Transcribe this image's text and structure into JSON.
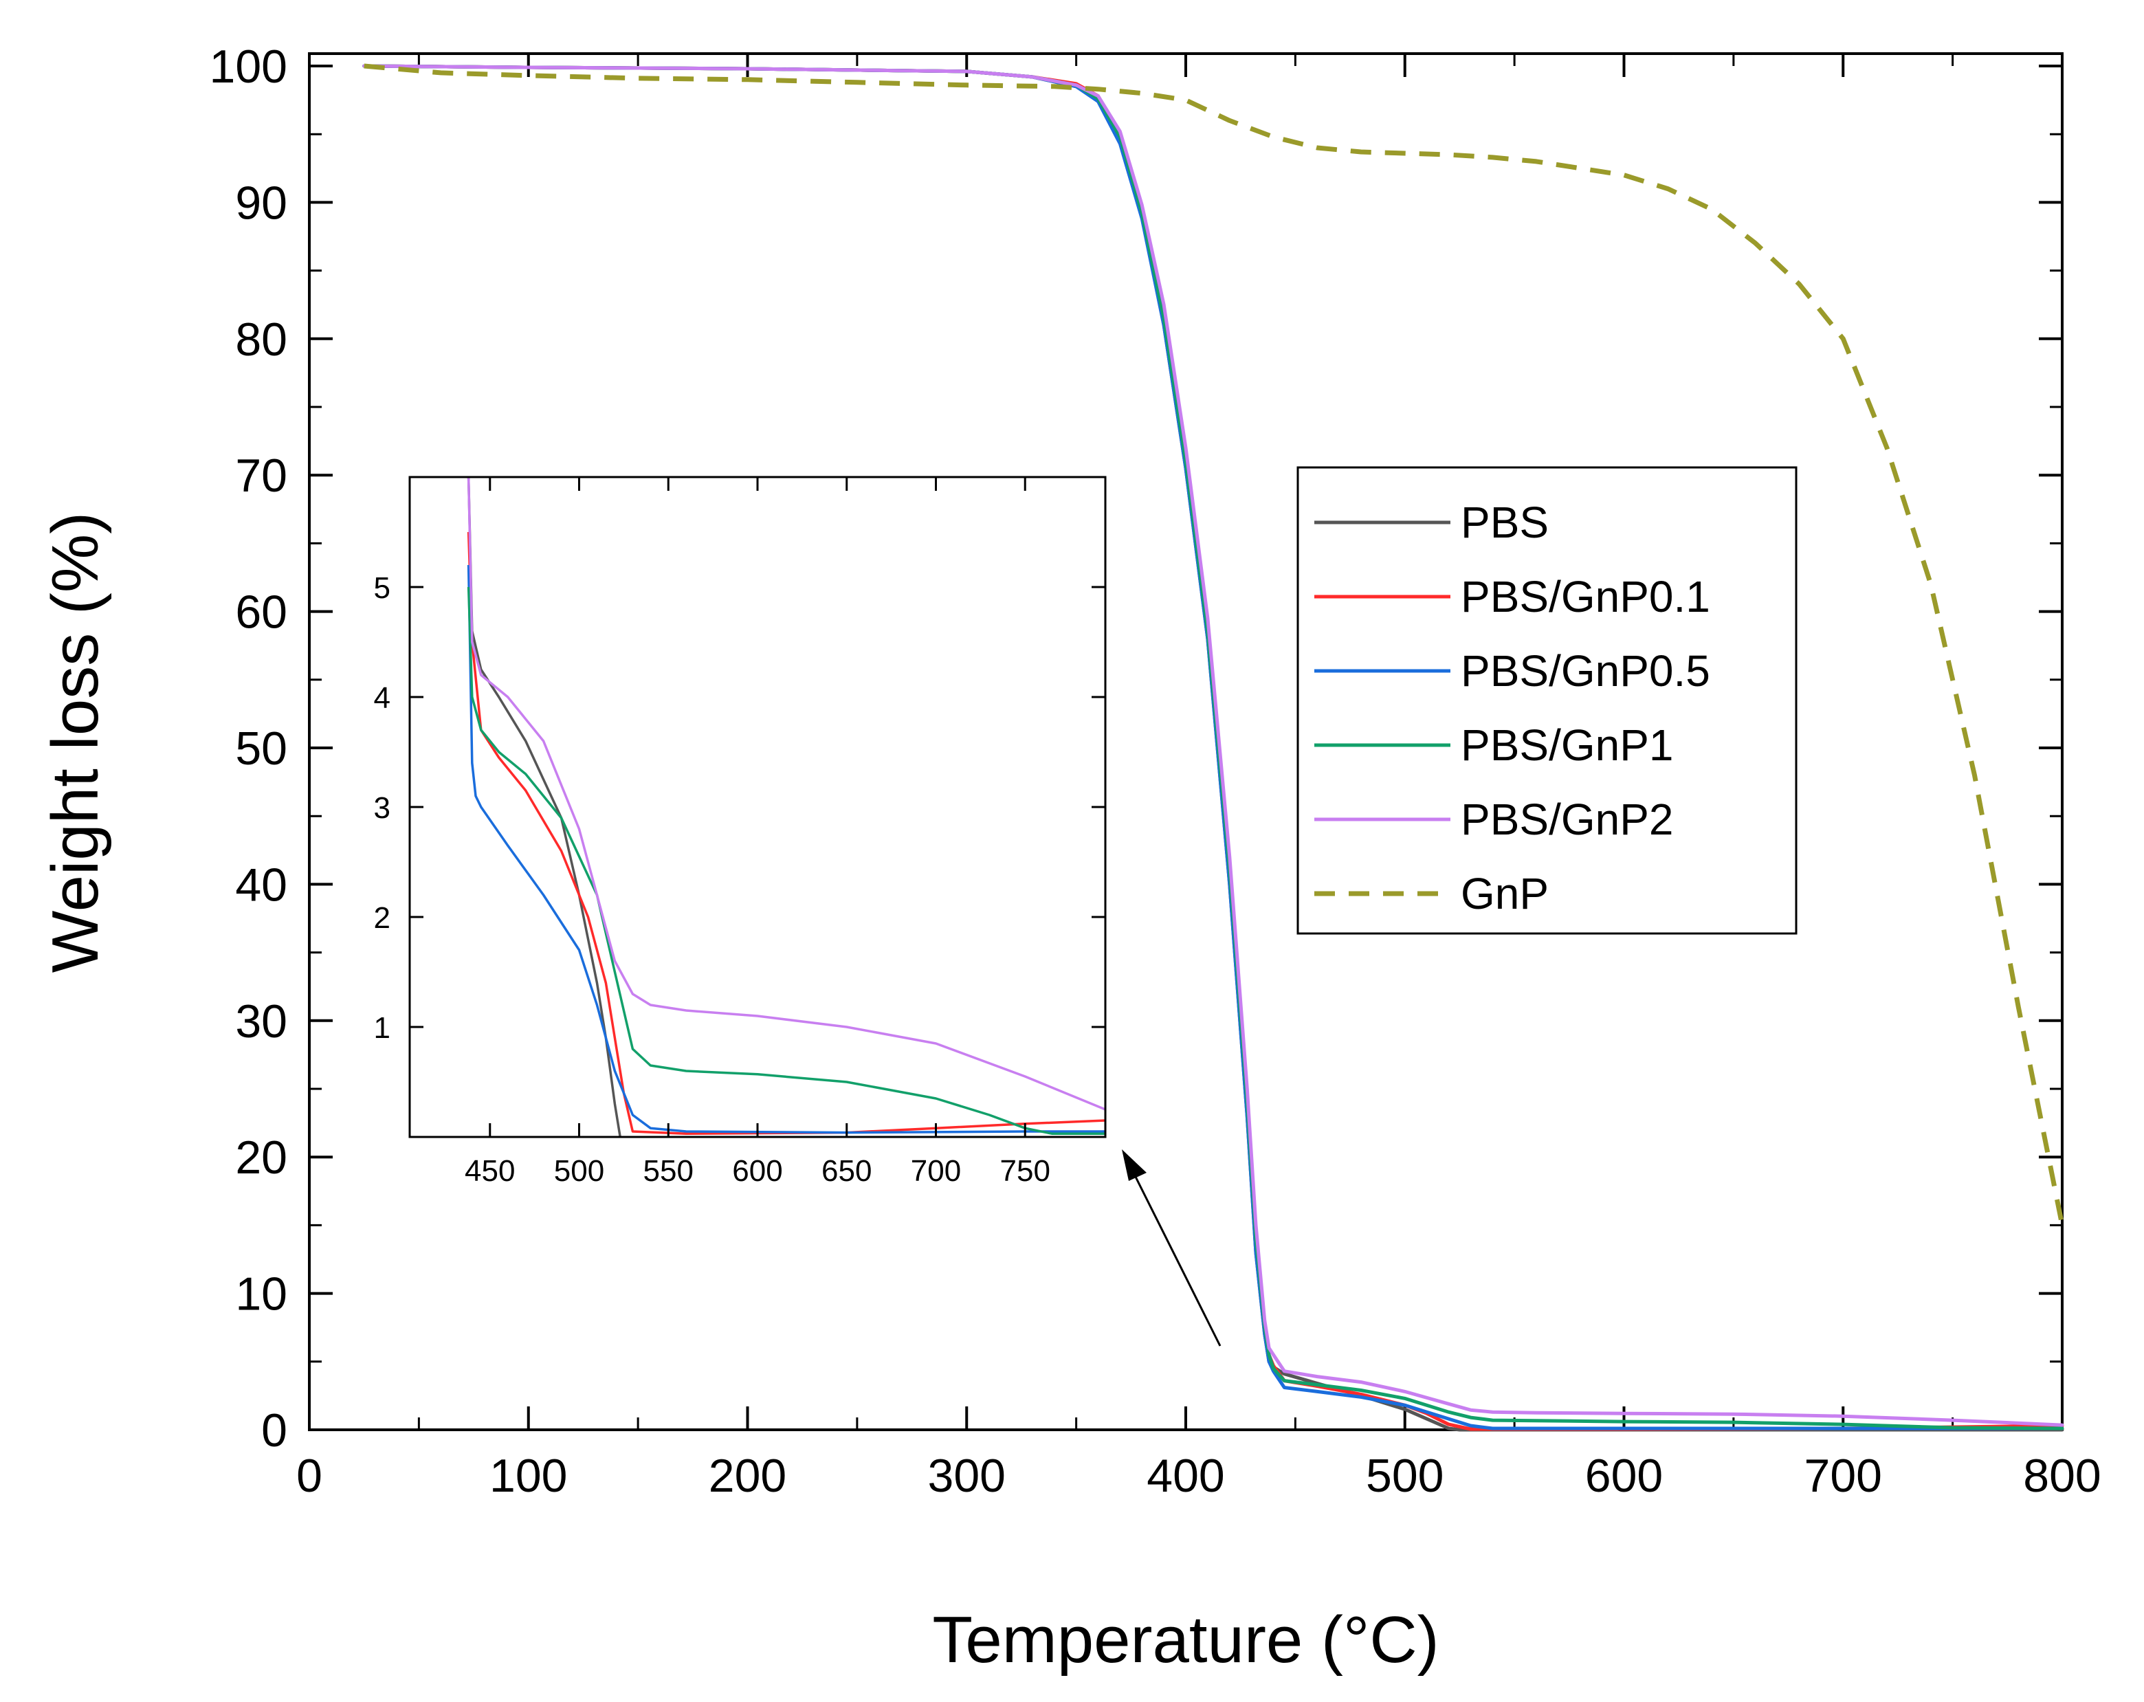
{
  "chart_data": [
    {
      "type": "line",
      "xlabel": "Temperature (°C)",
      "ylabel": "Weight loss (%)",
      "xlim": [
        0,
        800
      ],
      "ylim": [
        0,
        100
      ],
      "xticks": [
        0,
        100,
        200,
        300,
        400,
        500,
        600,
        700,
        800
      ],
      "yticks": [
        0,
        10,
        20,
        30,
        40,
        50,
        60,
        70,
        80,
        90,
        100
      ],
      "grid": false,
      "legend_position": "right-center",
      "series": [
        {
          "name": "PBS",
          "color": "#555555",
          "dash": "solid",
          "x": [
            25,
            100,
            200,
            300,
            330,
            350,
            360,
            370,
            380,
            390,
            400,
            410,
            420,
            428,
            432,
            436,
            438,
            440,
            445,
            460,
            480,
            500,
            510,
            520,
            525,
            530,
            600,
            700,
            800
          ],
          "y": [
            100,
            99.9,
            99.8,
            99.6,
            99.2,
            98.5,
            97.5,
            94.5,
            89,
            81,
            70.5,
            58,
            40,
            23,
            13,
            7,
            5,
            4.6,
            4.1,
            3.4,
            2.5,
            1.5,
            0.8,
            0.1,
            0,
            0,
            0,
            0,
            0
          ]
        },
        {
          "name": "PBS/GnP0.1",
          "color": "#ff2a2a",
          "dash": "solid",
          "x": [
            25,
            100,
            200,
            300,
            330,
            350,
            360,
            370,
            380,
            390,
            400,
            410,
            420,
            428,
            432,
            436,
            438,
            440,
            445,
            460,
            480,
            500,
            510,
            520,
            530,
            600,
            700,
            800
          ],
          "y": [
            100,
            99.9,
            99.8,
            99.6,
            99.2,
            98.7,
            97.8,
            95,
            89.5,
            82,
            71,
            58.5,
            41,
            24,
            14,
            7.5,
            5.5,
            4.7,
            3.6,
            3.2,
            2.6,
            1.8,
            1.2,
            0.4,
            0.05,
            0.05,
            0.1,
            0.3
          ]
        },
        {
          "name": "PBS/GnP0.5",
          "color": "#1a6ddc",
          "dash": "solid",
          "x": [
            25,
            100,
            200,
            300,
            330,
            350,
            360,
            370,
            380,
            390,
            400,
            410,
            420,
            428,
            432,
            436,
            438,
            440,
            445,
            460,
            480,
            500,
            520,
            530,
            540,
            600,
            700,
            800
          ],
          "y": [
            100,
            99.9,
            99.8,
            99.6,
            99.2,
            98.5,
            97.4,
            94.3,
            88.8,
            81,
            70.5,
            58,
            40,
            23,
            13,
            7,
            5,
            4.3,
            3.1,
            2.8,
            2.4,
            1.8,
            0.8,
            0.3,
            0.1,
            0.1,
            0.1,
            0.1
          ]
        },
        {
          "name": "PBS/GnP1",
          "color": "#12a06a",
          "dash": "solid",
          "x": [
            25,
            100,
            200,
            300,
            330,
            350,
            360,
            370,
            380,
            390,
            400,
            410,
            420,
            428,
            432,
            436,
            438,
            440,
            445,
            460,
            480,
            500,
            520,
            530,
            540,
            600,
            650,
            700,
            750,
            800
          ],
          "y": [
            100,
            99.9,
            99.8,
            99.6,
            99.2,
            98.6,
            97.6,
            94.8,
            89.2,
            81.5,
            71,
            58.5,
            41,
            24,
            14,
            7.5,
            5.5,
            4.5,
            3.6,
            3.3,
            2.9,
            2.3,
            1.3,
            0.9,
            0.7,
            0.6,
            0.55,
            0.4,
            0.15,
            0.1
          ]
        },
        {
          "name": "PBS/GnP2",
          "color": "#c87ff0",
          "dash": "solid",
          "x": [
            25,
            100,
            200,
            300,
            330,
            350,
            360,
            370,
            380,
            390,
            400,
            410,
            420,
            428,
            432,
            436,
            438,
            440,
            445,
            460,
            480,
            500,
            520,
            530,
            540,
            560,
            600,
            650,
            700,
            750,
            800
          ],
          "y": [
            100,
            99.9,
            99.8,
            99.6,
            99.2,
            98.6,
            97.8,
            95.2,
            89.8,
            82.5,
            72,
            59.5,
            42,
            25,
            15,
            8,
            6,
            5.5,
            4.3,
            3.9,
            3.5,
            2.8,
            1.9,
            1.45,
            1.3,
            1.25,
            1.2,
            1.15,
            1.0,
            0.7,
            0.35
          ]
        },
        {
          "name": "GnP",
          "color": "#9a9a2a",
          "dash": "dashed",
          "x": [
            25,
            60,
            100,
            150,
            200,
            250,
            300,
            340,
            360,
            380,
            400,
            420,
            440,
            460,
            480,
            500,
            520,
            540,
            560,
            580,
            600,
            620,
            640,
            660,
            680,
            700,
            720,
            740,
            760,
            780,
            800
          ],
          "y": [
            100,
            99.5,
            99.3,
            99.1,
            99.0,
            98.8,
            98.6,
            98.5,
            98.3,
            98.0,
            97.5,
            96.0,
            94.8,
            94.0,
            93.7,
            93.6,
            93.5,
            93.3,
            93.0,
            92.5,
            92.0,
            91.0,
            89.5,
            87.0,
            84.0,
            80.0,
            72.0,
            62.0,
            48.0,
            31.0,
            15.0
          ]
        }
      ]
    },
    {
      "type": "line",
      "title": "",
      "xlim": [
        405,
        795
      ],
      "ylim": [
        0,
        6
      ],
      "xticks": [
        450,
        500,
        550,
        600,
        650,
        700,
        750
      ],
      "yticks": [
        1,
        2,
        3,
        4,
        5
      ],
      "grid": false,
      "series": [
        {
          "name": "PBS",
          "color": "#555555",
          "x": [
            438,
            440,
            445,
            455,
            470,
            490,
            500,
            510,
            515,
            520,
            523
          ],
          "y": [
            6.0,
            4.6,
            4.25,
            4.0,
            3.6,
            2.9,
            2.2,
            1.4,
            0.9,
            0.3,
            0.0
          ]
        },
        {
          "name": "PBS/GnP0.1",
          "color": "#ff2a2a",
          "x": [
            438,
            440,
            445,
            455,
            470,
            490,
            505,
            515,
            520,
            525,
            530,
            560,
            650,
            700,
            750,
            795
          ],
          "y": [
            5.5,
            4.5,
            3.7,
            3.45,
            3.15,
            2.6,
            2.0,
            1.4,
            0.9,
            0.4,
            0.05,
            0.03,
            0.04,
            0.08,
            0.12,
            0.15
          ]
        },
        {
          "name": "PBS/GnP0.5",
          "color": "#1a6ddc",
          "x": [
            438,
            439,
            440,
            442,
            445,
            460,
            480,
            500,
            510,
            520,
            530,
            540,
            560,
            650,
            750,
            795
          ],
          "y": [
            5.2,
            4.3,
            3.4,
            3.1,
            3.0,
            2.65,
            2.2,
            1.7,
            1.2,
            0.6,
            0.2,
            0.08,
            0.05,
            0.04,
            0.05,
            0.05
          ]
        },
        {
          "name": "PBS/GnP1",
          "color": "#12a06a",
          "x": [
            438,
            440,
            445,
            455,
            470,
            490,
            510,
            520,
            530,
            540,
            560,
            600,
            650,
            700,
            730,
            750,
            765,
            795
          ],
          "y": [
            5.0,
            4.0,
            3.7,
            3.5,
            3.3,
            2.9,
            2.2,
            1.5,
            0.8,
            0.65,
            0.6,
            0.57,
            0.5,
            0.35,
            0.2,
            0.08,
            0.03,
            0.03
          ]
        },
        {
          "name": "PBS/GnP2",
          "color": "#c87ff0",
          "x": [
            438,
            440,
            445,
            460,
            480,
            500,
            520,
            530,
            540,
            560,
            600,
            650,
            700,
            750,
            795
          ],
          "y": [
            6.0,
            4.5,
            4.2,
            4.0,
            3.6,
            2.8,
            1.6,
            1.3,
            1.2,
            1.15,
            1.1,
            1.0,
            0.85,
            0.55,
            0.25
          ]
        }
      ]
    }
  ]
}
